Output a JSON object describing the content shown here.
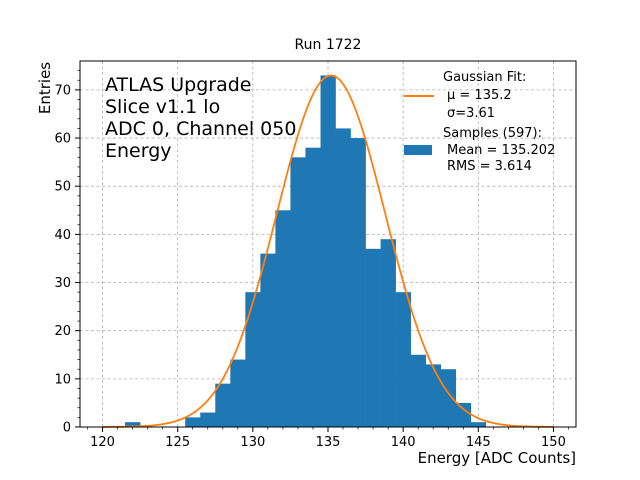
{
  "chart_data": {
    "type": "bar",
    "title": "Run 1722",
    "xlabel": "Energy [ADC Counts]",
    "ylabel": "Entries",
    "xlim": [
      118.5,
      151.5
    ],
    "ylim": [
      0,
      76
    ],
    "xticks": [
      120,
      125,
      130,
      135,
      140,
      145,
      150
    ],
    "yticks": [
      0,
      10,
      20,
      30,
      40,
      50,
      60,
      70
    ],
    "grid": true,
    "legend_position": "top-right",
    "annotation_lines": [
      "ATLAS Upgrade",
      "Slice v1.1 lo",
      "ADC 0, Channel 050",
      "Energy"
    ],
    "series": [
      {
        "name": "Samples (597):",
        "kind": "histogram",
        "color": "#1f77b4",
        "legend_lines": [
          "Samples (597):",
          " Mean = 135.202",
          " RMS = 3.614"
        ],
        "bin_width": 1,
        "bins": [
          {
            "x": 122,
            "count": 1
          },
          {
            "x": 126,
            "count": 2
          },
          {
            "x": 127,
            "count": 3
          },
          {
            "x": 128,
            "count": 9
          },
          {
            "x": 129,
            "count": 14
          },
          {
            "x": 130,
            "count": 28
          },
          {
            "x": 131,
            "count": 36
          },
          {
            "x": 132,
            "count": 45
          },
          {
            "x": 133,
            "count": 56
          },
          {
            "x": 134,
            "count": 58
          },
          {
            "x": 135,
            "count": 73
          },
          {
            "x": 136,
            "count": 62
          },
          {
            "x": 137,
            "count": 60
          },
          {
            "x": 138,
            "count": 37
          },
          {
            "x": 139,
            "count": 39
          },
          {
            "x": 140,
            "count": 28
          },
          {
            "x": 141,
            "count": 15
          },
          {
            "x": 142,
            "count": 13
          },
          {
            "x": 143,
            "count": 12
          },
          {
            "x": 144,
            "count": 5
          },
          {
            "x": 145,
            "count": 1
          }
        ]
      },
      {
        "name": "Gaussian Fit:",
        "kind": "gaussian",
        "color": "#ff7f0e",
        "legend_lines": [
          "Gaussian Fit:",
          " $\\mu$ = 135.2",
          " $\\sigma$=3.61"
        ],
        "legend_display": [
          "Gaussian Fit:",
          "μ = 135.2",
          "σ=3.61"
        ],
        "mu": 135.2,
        "sigma": 3.61,
        "amplitude": 73,
        "x_range": [
          120,
          150
        ]
      }
    ]
  }
}
